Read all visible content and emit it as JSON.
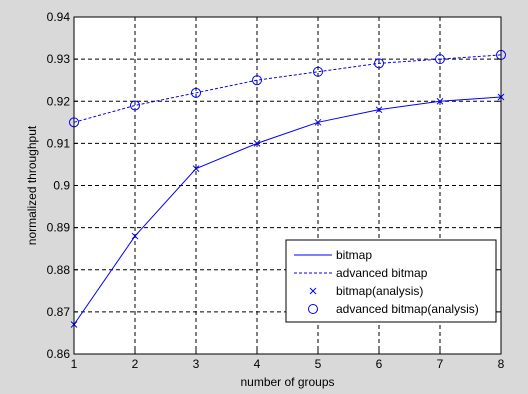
{
  "chart_data": {
    "type": "line",
    "xlabel": "number of groups",
    "ylabel": "normalized throughput",
    "xlim": [
      1,
      8
    ],
    "ylim": [
      0.86,
      0.94
    ],
    "xticks": [
      1,
      2,
      3,
      4,
      5,
      6,
      7,
      8
    ],
    "xtick_labels": [
      "1",
      "2",
      "3",
      "4",
      "5",
      "6",
      "7",
      "8"
    ],
    "yticks": [
      0.86,
      0.87,
      0.88,
      0.89,
      0.9,
      0.91,
      0.92,
      0.93,
      0.94
    ],
    "ytick_labels": [
      "0.86",
      "0.87",
      "0.88",
      "0.89",
      "0.9",
      "0.91",
      "0.92",
      "0.93",
      "0.94"
    ],
    "grid": true,
    "legend_position": "bottom-right",
    "x": [
      1,
      2,
      3,
      4,
      5,
      6,
      7,
      8
    ],
    "series": [
      {
        "name": "bitmap",
        "style": "solid-line",
        "color": "#0000ff",
        "values": [
          0.867,
          0.888,
          0.904,
          0.91,
          0.915,
          0.918,
          0.92,
          0.921
        ]
      },
      {
        "name": "advanced bitmap",
        "style": "dashed-line",
        "color": "#0000ff",
        "values": [
          0.915,
          0.919,
          0.922,
          0.925,
          0.927,
          0.929,
          0.93,
          0.931
        ]
      },
      {
        "name": "bitmap(analysis)",
        "style": "x-marker",
        "color": "#0000ff",
        "values": [
          0.867,
          0.888,
          0.904,
          0.91,
          0.915,
          0.918,
          0.92,
          0.921
        ]
      },
      {
        "name": "advanced bitmap(analysis)",
        "style": "circle-marker",
        "color": "#0000ff",
        "values": [
          0.915,
          0.919,
          0.922,
          0.925,
          0.927,
          0.929,
          0.93,
          0.931
        ]
      }
    ]
  }
}
